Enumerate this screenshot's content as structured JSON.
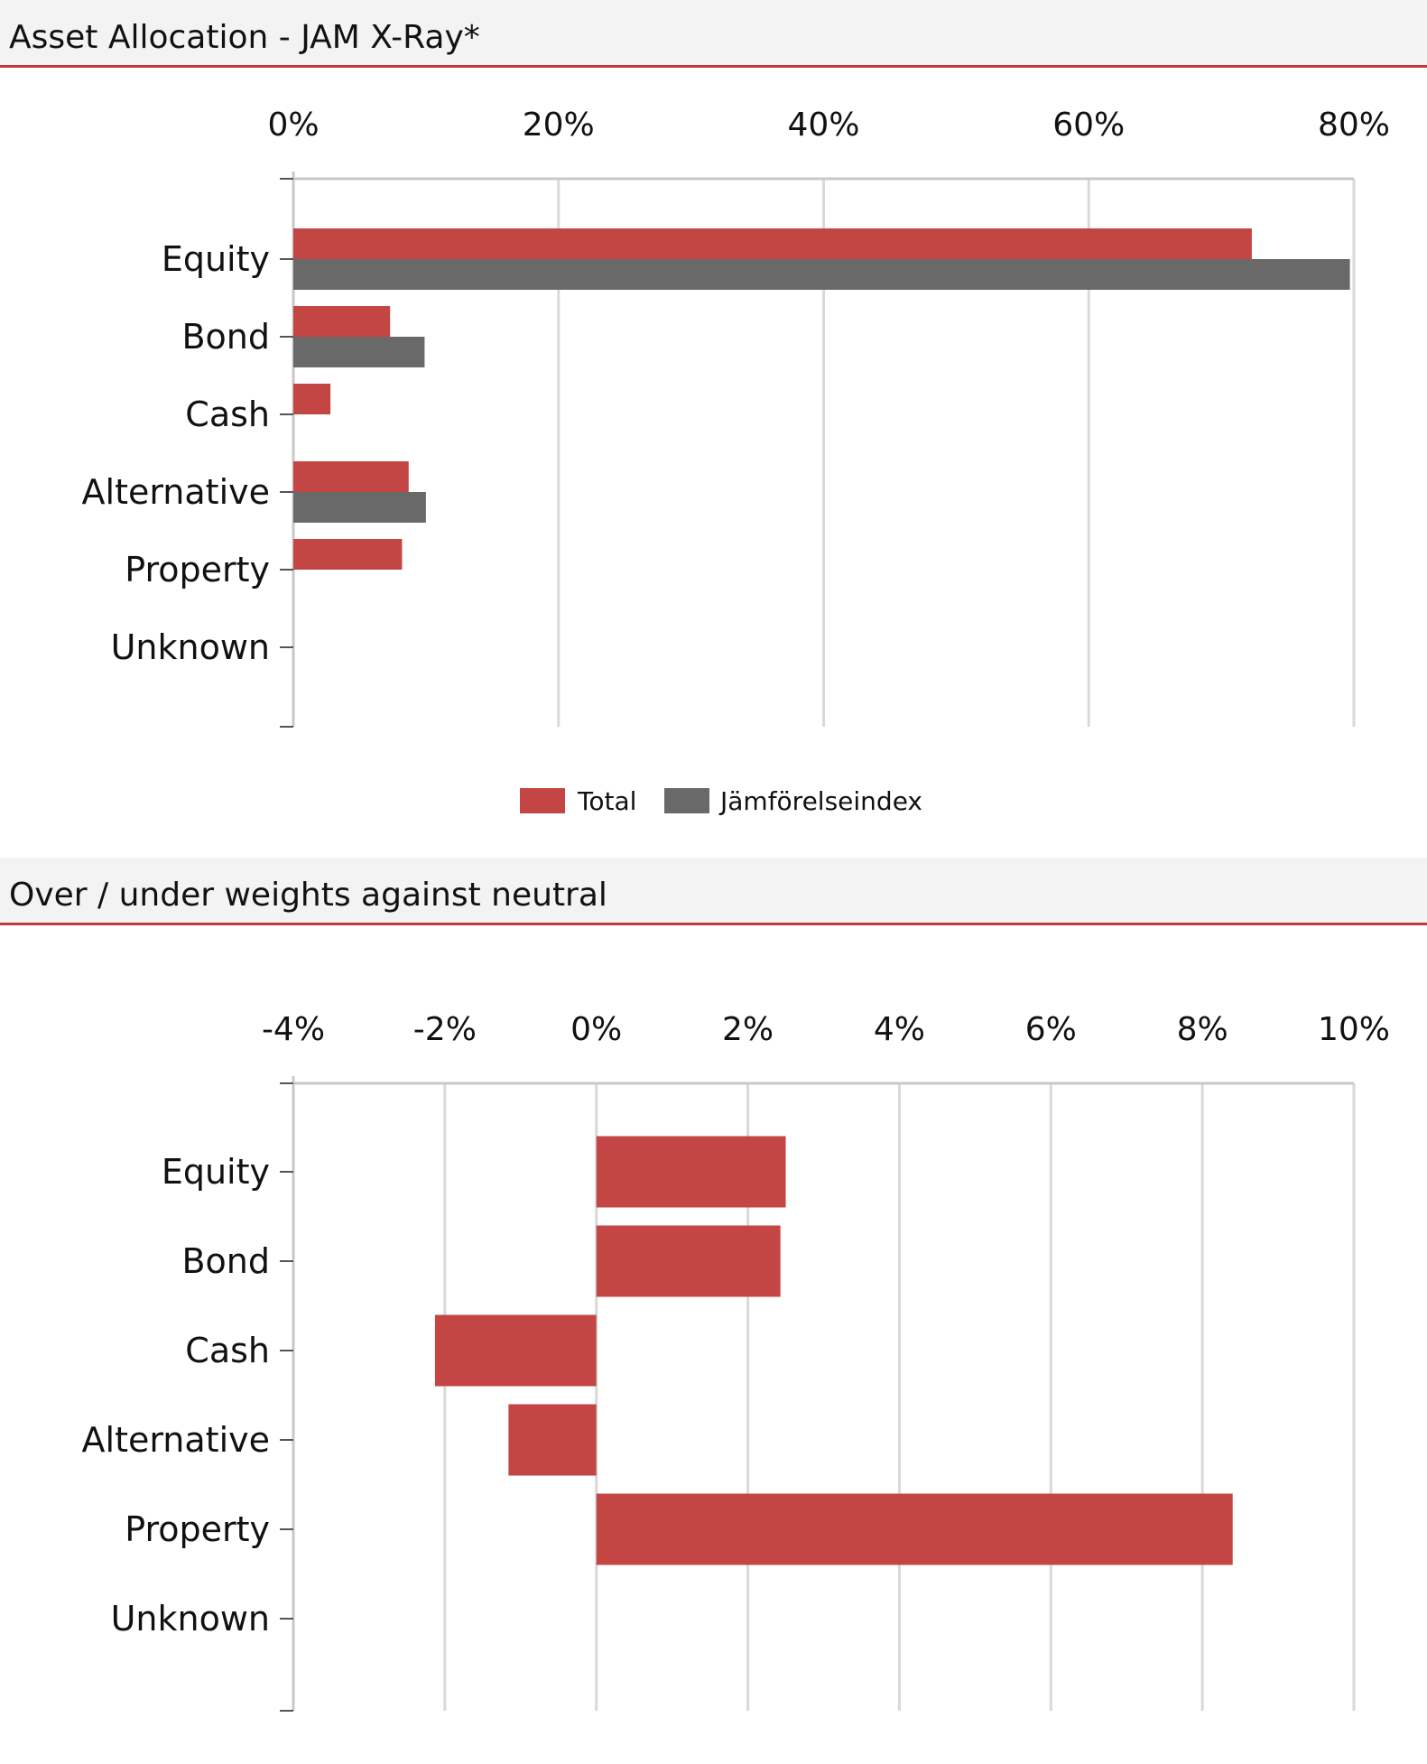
{
  "colors": {
    "total": "#c34645",
    "index": "#696969",
    "grid": "#d9d9d9",
    "axis": "#c8c8c8",
    "accent": "#c0393b"
  },
  "panels": {
    "allocation": {
      "title": "Asset Allocation - JAM X-Ray*"
    },
    "weights": {
      "title": "Over / under weights against neutral"
    }
  },
  "chart_data": [
    {
      "type": "bar",
      "orientation": "horizontal",
      "title": "Asset Allocation - JAM X-Ray*",
      "categories": [
        "Equity",
        "Bond",
        "Cash",
        "Alternative",
        "Property",
        "Unknown"
      ],
      "series": [
        {
          "name": "Total",
          "values": [
            72.3,
            7.3,
            2.8,
            8.7,
            8.2,
            0
          ]
        },
        {
          "name": "Jämförelseindex",
          "values": [
            79.7,
            9.9,
            0,
            10.0,
            0,
            0
          ]
        }
      ],
      "xlim": [
        0,
        80
      ],
      "xticks": [
        "0%",
        "20%",
        "40%",
        "60%",
        "80%"
      ],
      "grid": true,
      "legend": "bottom-center"
    },
    {
      "type": "bar",
      "orientation": "horizontal",
      "title": "Over / under weights against neutral",
      "categories": [
        "Equity",
        "Bond",
        "Cash",
        "Alternative",
        "Property",
        "Unknown"
      ],
      "values": [
        2.5,
        2.43,
        -2.13,
        -1.16,
        8.4,
        0
      ],
      "xlim": [
        -4,
        10
      ],
      "xticks": [
        "-4%",
        "-2%",
        "0%",
        "2%",
        "4%",
        "6%",
        "8%",
        "10%"
      ],
      "grid": true
    }
  ]
}
